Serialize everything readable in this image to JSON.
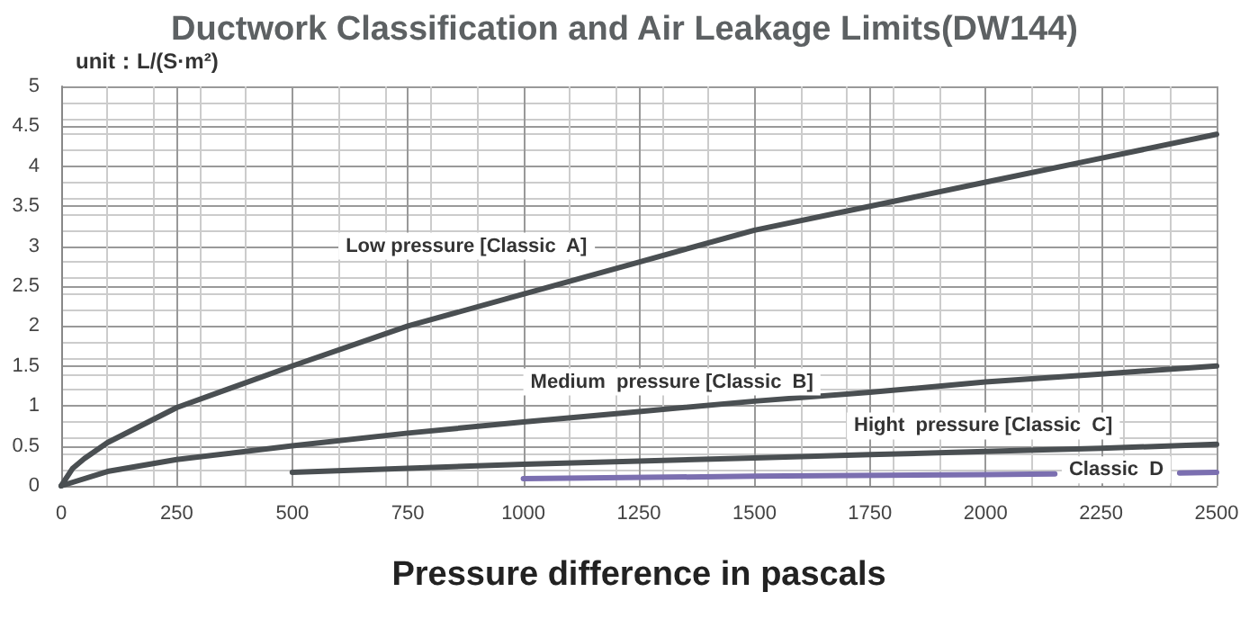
{
  "chart_data": {
    "type": "line",
    "title": "Ductwork Classification and Air Leakage Limits(DW144)",
    "xlabel": "Pressure difference in pascals",
    "ylabel": "unit：L/(S·m²)",
    "xlim": [
      0,
      2500
    ],
    "xticks": [
      0,
      250,
      500,
      750,
      1000,
      1250,
      1500,
      1750,
      2000,
      2250,
      2500
    ],
    "ylim": [
      0,
      5
    ],
    "yticks": [
      0,
      0.5,
      1,
      1.5,
      2,
      2.5,
      3,
      3.5,
      4,
      4.5,
      5
    ],
    "grid": true,
    "legend": false,
    "marker": "none",
    "line_style": "solid",
    "series": [
      {
        "name": "Low pressure [Classic  A]",
        "color": "#4a4f52",
        "x": [
          0,
          25,
          50,
          100,
          250,
          500,
          750,
          1000,
          1250,
          1500,
          1750,
          2000,
          2250,
          2500
        ],
        "values": [
          0,
          0.22,
          0.34,
          0.54,
          0.98,
          1.5,
          2.0,
          2.4,
          2.8,
          3.2,
          3.5,
          3.8,
          4.1,
          4.4
        ]
      },
      {
        "name": "Medium  pressure [Classic  B]",
        "color": "#4a4f52",
        "x": [
          0,
          100,
          250,
          500,
          750,
          1000,
          1250,
          1500,
          1750,
          2000,
          2250,
          2500
        ],
        "values": [
          0,
          0.18,
          0.33,
          0.5,
          0.66,
          0.8,
          0.93,
          1.06,
          1.17,
          1.3,
          1.4,
          1.5
        ]
      },
      {
        "name": "Hight  pressure [Classic  C]",
        "color": "#4a4f52",
        "x": [
          500,
          750,
          1000,
          1250,
          1500,
          1750,
          2000,
          2250,
          2500
        ],
        "values": [
          0.17,
          0.22,
          0.27,
          0.31,
          0.35,
          0.39,
          0.43,
          0.47,
          0.52
        ]
      },
      {
        "name": "Classic  D",
        "color": "#7b6fb0",
        "x": [
          1000,
          1500,
          2000,
          2150,
          2300,
          2420,
          2500
        ],
        "values": [
          0.09,
          0.12,
          0.14,
          0.15,
          null,
          0.16,
          0.17
        ]
      }
    ]
  }
}
